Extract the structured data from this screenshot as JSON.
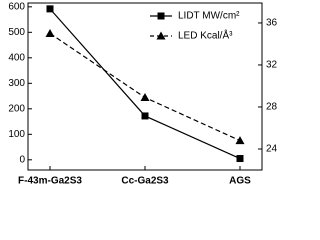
{
  "chart_data": {
    "type": "line",
    "categories": [
      "F-43m-Ga2S3",
      "Cc-Ga2S3",
      "AGS"
    ],
    "series": [
      {
        "name": "LIDT MW/cm²",
        "color": "#000000",
        "marker": "square",
        "dash": "solid",
        "values": [
          592,
          172,
          5
        ]
      },
      {
        "name": "LED Kcal/Å³",
        "color": "#000000",
        "marker": "triangle",
        "dash": "dashed",
        "axis": "y2",
        "values": [
          35.0,
          28.9,
          24.8
        ]
      }
    ],
    "ylim": [
      -40,
      615
    ],
    "yticks": [
      0,
      100,
      200,
      300,
      400,
      500,
      600
    ],
    "y2lim": [
      22,
      37.9
    ],
    "y2ticks": [
      24,
      28,
      32,
      36
    ],
    "legend": "top-right"
  }
}
